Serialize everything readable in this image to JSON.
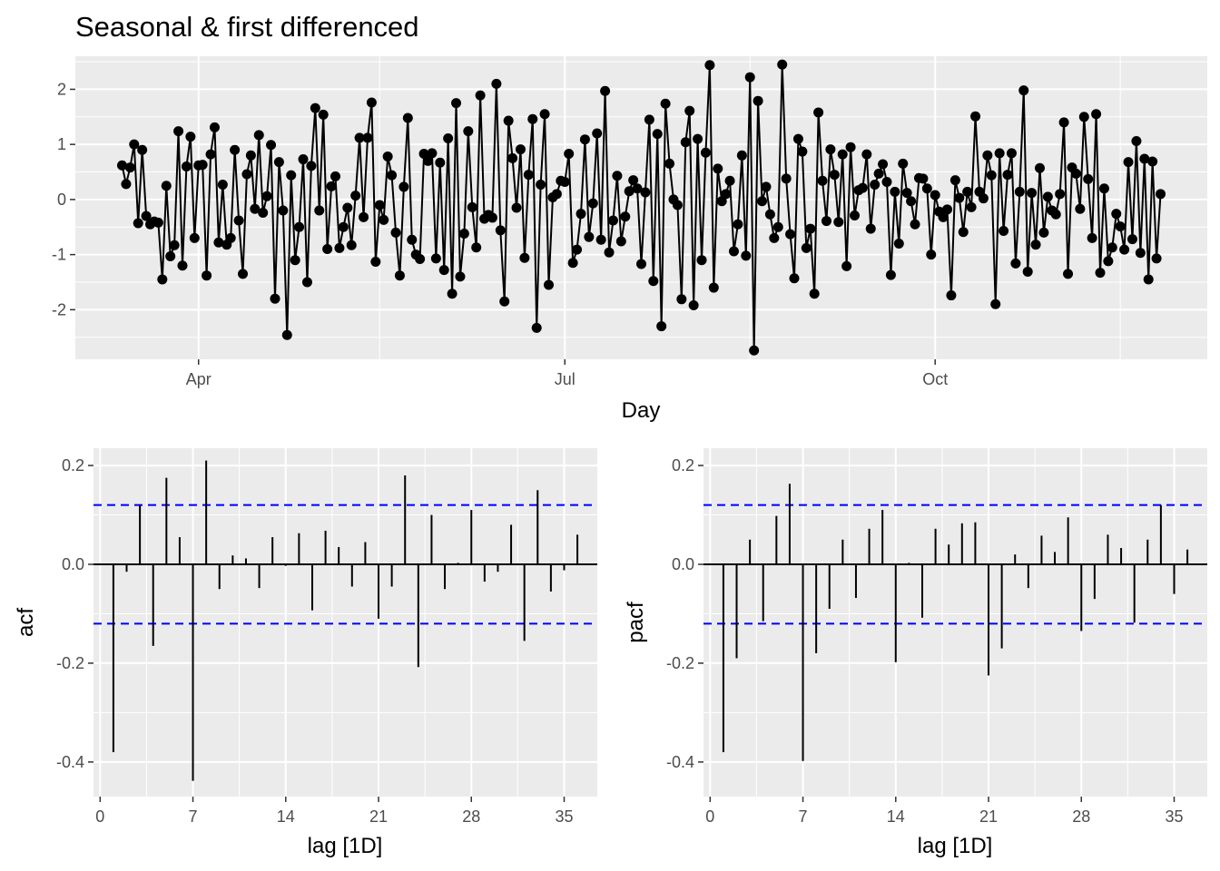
{
  "chart_data": [
    {
      "type": "line",
      "title": "Seasonal & first differenced",
      "xlabel": "Day",
      "ylabel": "",
      "x_ticks": [
        "Apr",
        "Jul",
        "Oct"
      ],
      "y_ticks": [
        "-2",
        "-1",
        "0",
        "1",
        "2"
      ],
      "ylim": [
        -2.9,
        2.6
      ],
      "grid": true,
      "markers": true,
      "color": "#000000",
      "x_start": "2020-03-13",
      "x_step_days": 1,
      "y": [
        0.62,
        0.28,
        0.58,
        1.0,
        -0.43,
        0.9,
        -0.3,
        -0.45,
        -0.4,
        -0.42,
        -1.45,
        0.25,
        -1.03,
        -0.83,
        1.24,
        -1.2,
        0.6,
        1.14,
        -0.7,
        0.62,
        0.63,
        -1.38,
        0.82,
        1.31,
        -0.78,
        0.27,
        -0.82,
        -0.7,
        0.9,
        -0.38,
        -1.35,
        0.46,
        0.8,
        -0.17,
        1.17,
        -0.24,
        0.06,
        0.99,
        -1.8,
        0.68,
        -0.2,
        -2.46,
        0.44,
        -1.1,
        -0.5,
        0.73,
        -1.5,
        0.61,
        1.66,
        -0.2,
        1.54,
        -0.9,
        0.24,
        0.42,
        -0.88,
        -0.5,
        -0.15,
        -0.83,
        0.07,
        1.12,
        -0.32,
        1.12,
        1.76,
        -1.13,
        -0.1,
        -0.37,
        0.78,
        0.44,
        -0.6,
        -1.38,
        0.23,
        1.48,
        -0.73,
        -1.0,
        -1.08,
        0.83,
        0.7,
        0.84,
        -1.07,
        0.67,
        -1.28,
        1.11,
        -1.71,
        1.75,
        -1.4,
        -0.62,
        1.24,
        -0.14,
        -0.87,
        1.89,
        -0.35,
        -0.28,
        -0.33,
        2.1,
        -0.56,
        -1.85,
        1.43,
        0.75,
        -0.15,
        0.91,
        -1.06,
        0.45,
        1.46,
        -2.33,
        0.27,
        1.55,
        -1.55,
        0.04,
        0.1,
        0.34,
        0.32,
        0.83,
        -1.15,
        -0.91,
        -0.26,
        1.09,
        -0.68,
        -0.07,
        1.2,
        -0.73,
        1.97,
        -0.96,
        -0.38,
        0.43,
        -0.76,
        -0.31,
        0.15,
        0.35,
        0.2,
        -1.17,
        0.13,
        1.45,
        -1.48,
        1.19,
        -2.3,
        1.74,
        0.65,
        0.0,
        -0.1,
        -1.81,
        1.04,
        1.61,
        -1.92,
        1.1,
        -1.1,
        0.85,
        2.44,
        -1.6,
        0.56,
        -0.03,
        0.1,
        0.34,
        -0.94,
        -0.45,
        0.8,
        -1.02,
        2.22,
        -2.74,
        1.79,
        -0.03,
        0.23,
        -0.27,
        -0.7,
        -0.5,
        2.45,
        0.38,
        -0.63,
        -1.43,
        1.1,
        0.87,
        -0.88,
        -0.53,
        -1.71,
        1.58,
        0.34,
        -0.39,
        0.91,
        0.45,
        -0.41,
        0.82,
        -1.21,
        0.95,
        -0.29,
        0.17,
        0.21,
        0.82,
        -0.53,
        0.27,
        0.47,
        0.64,
        0.32,
        -1.37,
        0.14,
        -0.8,
        0.65,
        0.12,
        -0.03,
        -0.45,
        0.39,
        0.38,
        0.2,
        -1.0,
        0.08,
        -0.22,
        -0.32,
        -0.18,
        -1.74,
        0.35,
        0.03,
        -0.59,
        0.14,
        -0.14,
        1.51,
        0.14,
        0.02,
        0.8,
        0.44,
        -1.9,
        0.84,
        -0.57,
        0.45,
        0.84,
        -1.16,
        0.14,
        1.98,
        -1.31,
        0.12,
        -0.82,
        0.57,
        -0.6,
        0.05,
        -0.2,
        -0.27,
        0.1,
        1.4,
        -1.35,
        0.58,
        0.47,
        -0.17,
        1.5,
        0.37,
        -0.7,
        1.55,
        -1.33,
        0.2,
        -1.12,
        -0.87,
        -0.26,
        -0.49,
        -0.91,
        0.68,
        -0.72,
        1.06,
        -0.97,
        0.74,
        -1.45,
        0.69,
        -1.07,
        0.1
      ]
    },
    {
      "type": "bar",
      "xlabel": "lag [1D]",
      "ylabel": "acf",
      "x_ticks": [
        "0",
        "7",
        "14",
        "21",
        "28",
        "35"
      ],
      "y_ticks": [
        "-0.4",
        "-0.2",
        "0.0",
        "0.2"
      ],
      "ylim": [
        -0.47,
        0.235
      ],
      "xlim": [
        -0.5,
        37.5
      ],
      "lags": [
        1,
        2,
        3,
        4,
        5,
        6,
        7,
        8,
        9,
        10,
        11,
        12,
        13,
        14,
        15,
        16,
        17,
        18,
        19,
        20,
        21,
        22,
        23,
        24,
        25,
        26,
        27,
        28,
        29,
        30,
        31,
        32,
        33,
        34,
        35,
        36
      ],
      "values": [
        -0.38,
        -0.015,
        0.12,
        -0.165,
        0.175,
        0.055,
        -0.438,
        0.21,
        -0.05,
        0.018,
        0.012,
        -0.048,
        0.055,
        -0.003,
        0.063,
        -0.093,
        0.068,
        0.035,
        -0.045,
        0.045,
        -0.11,
        -0.045,
        0.18,
        -0.208,
        0.1,
        -0.05,
        0.003,
        0.11,
        -0.035,
        -0.015,
        0.08,
        -0.155,
        0.15,
        -0.055,
        -0.012,
        0.06
      ],
      "significance": 0.12,
      "bar_color": "#000000",
      "limit_color": "#0000ff"
    },
    {
      "type": "bar",
      "xlabel": "lag [1D]",
      "ylabel": "pacf",
      "x_ticks": [
        "0",
        "7",
        "14",
        "21",
        "28",
        "35"
      ],
      "y_ticks": [
        "-0.4",
        "-0.2",
        "0.0",
        "0.2"
      ],
      "ylim": [
        -0.47,
        0.235
      ],
      "xlim": [
        -0.5,
        37.5
      ],
      "lags": [
        1,
        2,
        3,
        4,
        5,
        6,
        7,
        8,
        9,
        10,
        11,
        12,
        13,
        14,
        15,
        16,
        17,
        18,
        19,
        20,
        21,
        22,
        23,
        24,
        25,
        26,
        27,
        28,
        29,
        30,
        31,
        32,
        33,
        34,
        35,
        36
      ],
      "values": [
        -0.38,
        -0.19,
        0.05,
        -0.115,
        0.098,
        0.163,
        -0.398,
        -0.18,
        -0.09,
        0.05,
        -0.068,
        0.072,
        0.11,
        -0.198,
        0.003,
        -0.108,
        0.072,
        0.04,
        0.083,
        0.085,
        -0.225,
        -0.17,
        0.02,
        -0.048,
        0.058,
        0.025,
        0.095,
        -0.135,
        -0.07,
        0.06,
        0.033,
        -0.118,
        0.05,
        0.12,
        -0.06,
        0.03
      ],
      "significance": 0.12,
      "bar_color": "#000000",
      "limit_color": "#0000ff"
    }
  ]
}
